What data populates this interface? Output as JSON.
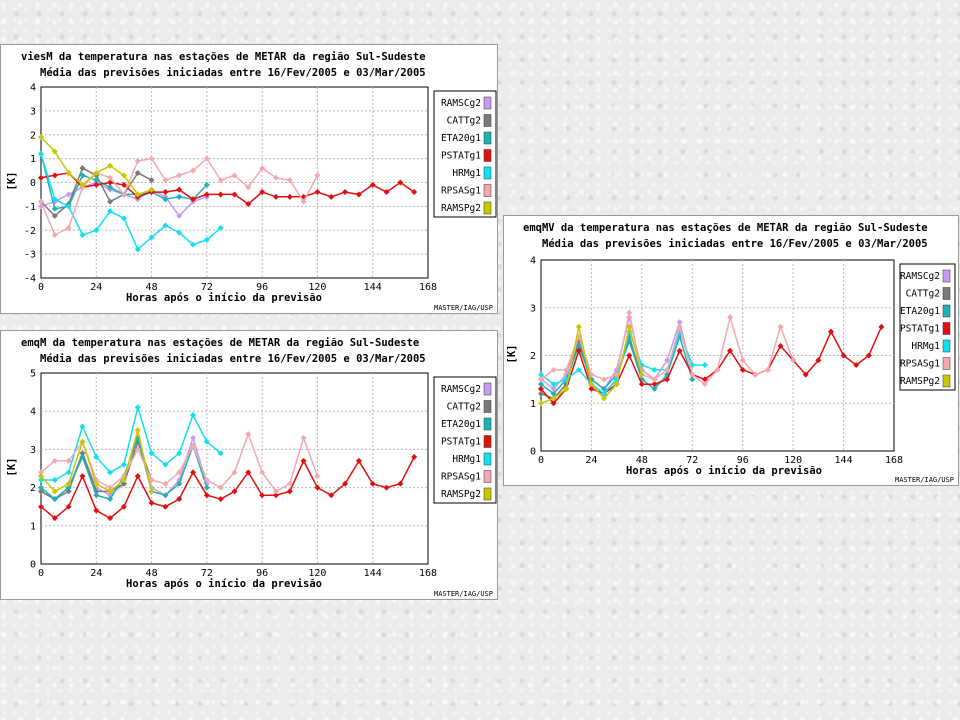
{
  "chart_data": [
    {
      "id": "viesM",
      "type": "line",
      "title": "viesM da temperatura nas estações de METAR da região Sul-Sudeste",
      "subtitle": "Média das previsões iniciadas entre 16/Fev/2005 e 03/Mar/2005",
      "xlabel": "Horas após o início da previsão",
      "ylabel": "[K]",
      "credit": "MASTER/IAG/USP",
      "xlim": [
        0,
        168
      ],
      "ylim": [
        -4,
        4
      ],
      "xticks": [
        0,
        24,
        48,
        72,
        96,
        120,
        144,
        168
      ],
      "yticks": [
        -4,
        -3,
        -2,
        -1,
        0,
        1,
        2,
        3,
        4
      ],
      "legend": "right",
      "series": [
        {
          "name": "RAMSCg2",
          "color": "#c89af0",
          "x": [
            0,
            6,
            12,
            18,
            24,
            30,
            36,
            42,
            48,
            54,
            60,
            66,
            72
          ],
          "y": [
            -1.0,
            -0.8,
            -0.5,
            -0.2,
            0.0,
            -0.3,
            -0.5,
            -0.7,
            -0.3,
            -0.6,
            -1.4,
            -0.8,
            -0.6
          ]
        },
        {
          "name": "CATTg2",
          "color": "#7a7a7a",
          "x": [
            0,
            6,
            12,
            18,
            24,
            30,
            36,
            42,
            48
          ],
          "y": [
            -0.8,
            -1.4,
            -0.9,
            0.6,
            0.3,
            -0.8,
            -0.5,
            0.4,
            0.1
          ]
        },
        {
          "name": "ETA20g1",
          "color": "#20b2b2",
          "x": [
            0,
            6,
            12,
            18,
            24,
            30,
            36,
            42,
            48,
            54,
            60,
            66,
            72
          ],
          "y": [
            1.2,
            -1.1,
            -1.0,
            0.3,
            0.1,
            -0.2,
            -0.5,
            -0.5,
            -0.4,
            -0.7,
            -0.6,
            -0.7,
            -0.1
          ]
        },
        {
          "name": "PSTATg1",
          "color": "#e01010",
          "x": [
            0,
            6,
            12,
            18,
            24,
            30,
            36,
            42,
            48,
            54,
            60,
            66,
            72,
            78,
            84,
            90,
            96,
            102,
            108,
            114,
            120,
            126,
            132,
            138,
            144,
            150,
            156,
            162
          ],
          "y": [
            0.2,
            0.3,
            0.4,
            -0.2,
            -0.1,
            0.0,
            -0.1,
            -0.6,
            -0.4,
            -0.4,
            -0.3,
            -0.7,
            -0.5,
            -0.5,
            -0.5,
            -0.9,
            -0.4,
            -0.6,
            -0.6,
            -0.6,
            -0.4,
            -0.6,
            -0.4,
            -0.5,
            -0.1,
            -0.4,
            0.0,
            -0.4
          ]
        },
        {
          "name": "HRMg1",
          "color": "#10e0f0",
          "x": [
            0,
            6,
            12,
            18,
            24,
            30,
            36,
            42,
            48,
            54,
            60,
            66,
            72,
            78
          ],
          "y": [
            1.2,
            -0.7,
            -1.0,
            -2.2,
            -2.0,
            -1.2,
            -1.5,
            -2.8,
            -2.3,
            -1.8,
            -2.1,
            -2.6,
            -2.4,
            -1.9
          ]
        },
        {
          "name": "RPSASg1",
          "color": "#f4a8b0",
          "x": [
            0,
            6,
            12,
            18,
            24,
            30,
            36,
            42,
            48,
            54,
            60,
            66,
            72,
            78,
            84,
            90,
            96,
            102,
            108,
            114,
            120
          ],
          "y": [
            -0.8,
            -2.2,
            -1.9,
            -0.2,
            0.4,
            0.2,
            -0.5,
            0.9,
            1.0,
            0.1,
            0.3,
            0.5,
            1.0,
            0.1,
            0.3,
            -0.2,
            0.6,
            0.2,
            0.1,
            -0.8,
            0.3
          ]
        },
        {
          "name": "RAMSPg2",
          "color": "#c8c800",
          "x": [
            0,
            6,
            12,
            18,
            24,
            30,
            36,
            42,
            48
          ],
          "y": [
            1.9,
            1.3,
            0.4,
            -0.1,
            0.4,
            0.7,
            0.3,
            -0.5,
            -0.3
          ]
        }
      ]
    },
    {
      "id": "emqM",
      "type": "line",
      "title": "emqM da temperatura nas estações de METAR da região Sul-Sudeste",
      "subtitle": "Média das previsões iniciadas entre 16/Fev/2005 e 03/Mar/2005",
      "xlabel": "Horas após o início da previsão",
      "ylabel": "[K]",
      "credit": "MASTER/IAG/USP",
      "xlim": [
        0,
        168
      ],
      "ylim": [
        0,
        5
      ],
      "xticks": [
        0,
        24,
        48,
        72,
        96,
        120,
        144,
        168
      ],
      "yticks": [
        0,
        1,
        2,
        3,
        4,
        5
      ],
      "legend": "right",
      "series": [
        {
          "name": "RAMSCg2",
          "color": "#c89af0",
          "x": [
            0,
            6,
            12,
            18,
            24,
            30,
            36,
            42,
            48,
            54,
            60,
            66,
            72
          ],
          "y": [
            1.9,
            1.7,
            2.0,
            2.9,
            2.0,
            1.8,
            2.1,
            3.2,
            2.0,
            1.8,
            2.2,
            3.3,
            2.1
          ]
        },
        {
          "name": "CATTg2",
          "color": "#7a7a7a",
          "x": [
            0,
            6,
            12,
            18,
            24,
            30,
            36,
            42,
            48
          ],
          "y": [
            1.9,
            1.7,
            1.9,
            2.9,
            1.9,
            1.9,
            2.1,
            3.2,
            2.2
          ]
        },
        {
          "name": "ETA20g1",
          "color": "#20b2b2",
          "x": [
            0,
            6,
            12,
            18,
            24,
            30,
            36,
            42,
            48,
            54,
            60,
            66,
            72
          ],
          "y": [
            2.0,
            1.7,
            2.0,
            2.8,
            1.8,
            1.7,
            2.3,
            3.3,
            1.9,
            1.8,
            2.1,
            3.1,
            2.0
          ]
        },
        {
          "name": "PSTATg1",
          "color": "#e01010",
          "x": [
            0,
            6,
            12,
            18,
            24,
            30,
            36,
            42,
            48,
            54,
            60,
            66,
            72,
            78,
            84,
            90,
            96,
            102,
            108,
            114,
            120,
            126,
            132,
            138,
            144,
            150,
            156,
            162
          ],
          "y": [
            1.5,
            1.2,
            1.5,
            2.3,
            1.4,
            1.2,
            1.5,
            2.3,
            1.6,
            1.5,
            1.7,
            2.4,
            1.8,
            1.7,
            1.9,
            2.4,
            1.8,
            1.8,
            1.9,
            2.7,
            2.0,
            1.8,
            2.1,
            2.7,
            2.1,
            2.0,
            2.1,
            2.8
          ]
        },
        {
          "name": "HRMg1",
          "color": "#10e0f0",
          "x": [
            0,
            6,
            12,
            18,
            24,
            30,
            36,
            42,
            48,
            54,
            60,
            66,
            72,
            78
          ],
          "y": [
            2.2,
            2.2,
            2.4,
            3.6,
            2.8,
            2.4,
            2.6,
            4.1,
            2.9,
            2.6,
            2.9,
            3.9,
            3.2,
            2.9
          ]
        },
        {
          "name": "RPSASg1",
          "color": "#f4a8b0",
          "x": [
            0,
            6,
            12,
            18,
            24,
            30,
            36,
            42,
            48,
            54,
            60,
            66,
            72,
            78,
            84,
            90,
            96,
            102,
            108,
            114,
            120
          ],
          "y": [
            2.4,
            2.7,
            2.7,
            3.2,
            2.2,
            2.0,
            2.3,
            3.0,
            2.2,
            2.1,
            2.4,
            3.1,
            2.2,
            2.0,
            2.4,
            3.4,
            2.4,
            1.9,
            2.1,
            3.3,
            2.3
          ]
        },
        {
          "name": "RAMSPg2",
          "color": "#c8c800",
          "x": [
            0,
            6,
            12,
            18,
            24,
            30,
            36,
            42,
            48
          ],
          "y": [
            2.3,
            1.9,
            2.1,
            3.2,
            2.1,
            1.9,
            2.2,
            3.5,
            1.9
          ]
        }
      ]
    },
    {
      "id": "emqMV",
      "type": "line",
      "title": "emqMV da temperatura nas estações de METAR da região Sul-Sudeste",
      "subtitle": "Média das previsões iniciadas entre 16/Fev/2005 e 03/Mar/2005",
      "xlabel": "Horas após o início da previsão",
      "ylabel": "[K]",
      "credit": "MASTER/IAG/USP",
      "xlim": [
        0,
        168
      ],
      "ylim": [
        0,
        4
      ],
      "xticks": [
        0,
        24,
        48,
        72,
        96,
        120,
        144,
        168
      ],
      "yticks": [
        0,
        1,
        2,
        3,
        4
      ],
      "legend": "right",
      "series": [
        {
          "name": "RAMSCg2",
          "color": "#c89af0",
          "x": [
            0,
            6,
            12,
            18,
            24,
            30,
            36,
            42,
            48,
            54,
            60,
            66,
            72
          ],
          "y": [
            1.5,
            1.3,
            1.6,
            2.4,
            1.5,
            1.3,
            1.7,
            2.8,
            1.7,
            1.5,
            1.9,
            2.7,
            1.6
          ]
        },
        {
          "name": "CATTg2",
          "color": "#7a7a7a",
          "x": [
            0,
            6,
            12,
            18,
            24,
            30,
            36,
            42,
            48
          ],
          "y": [
            1.2,
            1.1,
            1.4,
            2.3,
            1.4,
            1.2,
            1.5,
            2.4,
            1.5
          ]
        },
        {
          "name": "ETA20g1",
          "color": "#20b2b2",
          "x": [
            0,
            6,
            12,
            18,
            24,
            30,
            36,
            42,
            48,
            54,
            60,
            66,
            72
          ],
          "y": [
            1.4,
            1.2,
            1.5,
            2.2,
            1.5,
            1.3,
            1.6,
            2.3,
            1.5,
            1.3,
            1.6,
            2.4,
            1.5
          ]
        },
        {
          "name": "PSTATg1",
          "color": "#e01010",
          "x": [
            0,
            6,
            12,
            18,
            24,
            30,
            36,
            42,
            48,
            54,
            60,
            66,
            72,
            78,
            84,
            90,
            96,
            102,
            108,
            114,
            120,
            126,
            132,
            138,
            144,
            150,
            156,
            162
          ],
          "y": [
            1.3,
            1.0,
            1.3,
            2.1,
            1.3,
            1.2,
            1.4,
            2.0,
            1.4,
            1.4,
            1.5,
            2.1,
            1.6,
            1.5,
            1.7,
            2.1,
            1.7,
            1.6,
            1.7,
            2.2,
            1.9,
            1.6,
            1.9,
            2.5,
            2.0,
            1.8,
            2.0,
            2.6
          ]
        },
        {
          "name": "HRMg1",
          "color": "#10e0f0",
          "x": [
            0,
            6,
            12,
            18,
            24,
            30,
            36,
            42,
            48,
            54,
            60,
            66,
            72,
            78
          ],
          "y": [
            1.6,
            1.4,
            1.5,
            1.7,
            1.4,
            1.2,
            1.5,
            2.5,
            1.8,
            1.7,
            1.7,
            2.5,
            1.8,
            1.8
          ]
        },
        {
          "name": "RPSASg1",
          "color": "#f4a8b0",
          "x": [
            0,
            6,
            12,
            18,
            24,
            30,
            36,
            42,
            48,
            54,
            60,
            66,
            72,
            78,
            84,
            90,
            96,
            102,
            108,
            114,
            120
          ],
          "y": [
            1.5,
            1.7,
            1.7,
            2.4,
            1.6,
            1.5,
            1.6,
            2.9,
            1.6,
            1.5,
            1.7,
            2.6,
            1.6,
            1.4,
            1.7,
            2.8,
            1.9,
            1.6,
            1.7,
            2.6,
            1.9
          ]
        },
        {
          "name": "RAMSPg2",
          "color": "#c8c800",
          "x": [
            0,
            6,
            12,
            18,
            24,
            30,
            36,
            42,
            48
          ],
          "y": [
            1.0,
            1.1,
            1.3,
            2.6,
            1.4,
            1.1,
            1.4,
            2.6,
            1.6
          ]
        }
      ]
    }
  ]
}
